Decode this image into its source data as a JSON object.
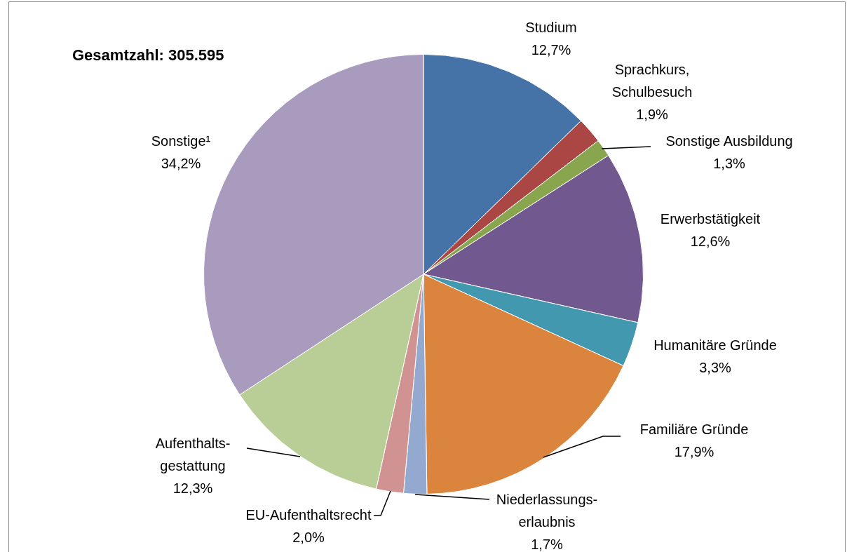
{
  "chart_data": {
    "type": "pie",
    "title": "Gesamtzahl: 305.595",
    "categories": [
      "Studium",
      "Sprachkurs,\nSchulbesuch",
      "Sonstige Ausbildung",
      "Erwerbstätigkeit",
      "Humanitäre Gründe",
      "Familiäre Gründe",
      "Niederlassungs-\nerlaubnis",
      "EU-Aufenthaltsrecht",
      "Aufenthalts-\ngestattung",
      "Sonstige¹"
    ],
    "values": [
      12.7,
      1.9,
      1.3,
      12.6,
      3.3,
      17.9,
      1.7,
      2.0,
      12.3,
      34.2
    ],
    "value_labels": [
      "12,7%",
      "1,9%",
      "1,3%",
      "12,6%",
      "3,3%",
      "17,9%",
      "1,7%",
      "2,0%",
      "12,3%",
      "34,2%"
    ],
    "colors": [
      "#4572a7",
      "#aa4643",
      "#89a54e",
      "#71588f",
      "#4198af",
      "#db843d",
      "#93a9cf",
      "#d19392",
      "#b9cd96",
      "#a99bbd"
    ],
    "legend": false
  }
}
